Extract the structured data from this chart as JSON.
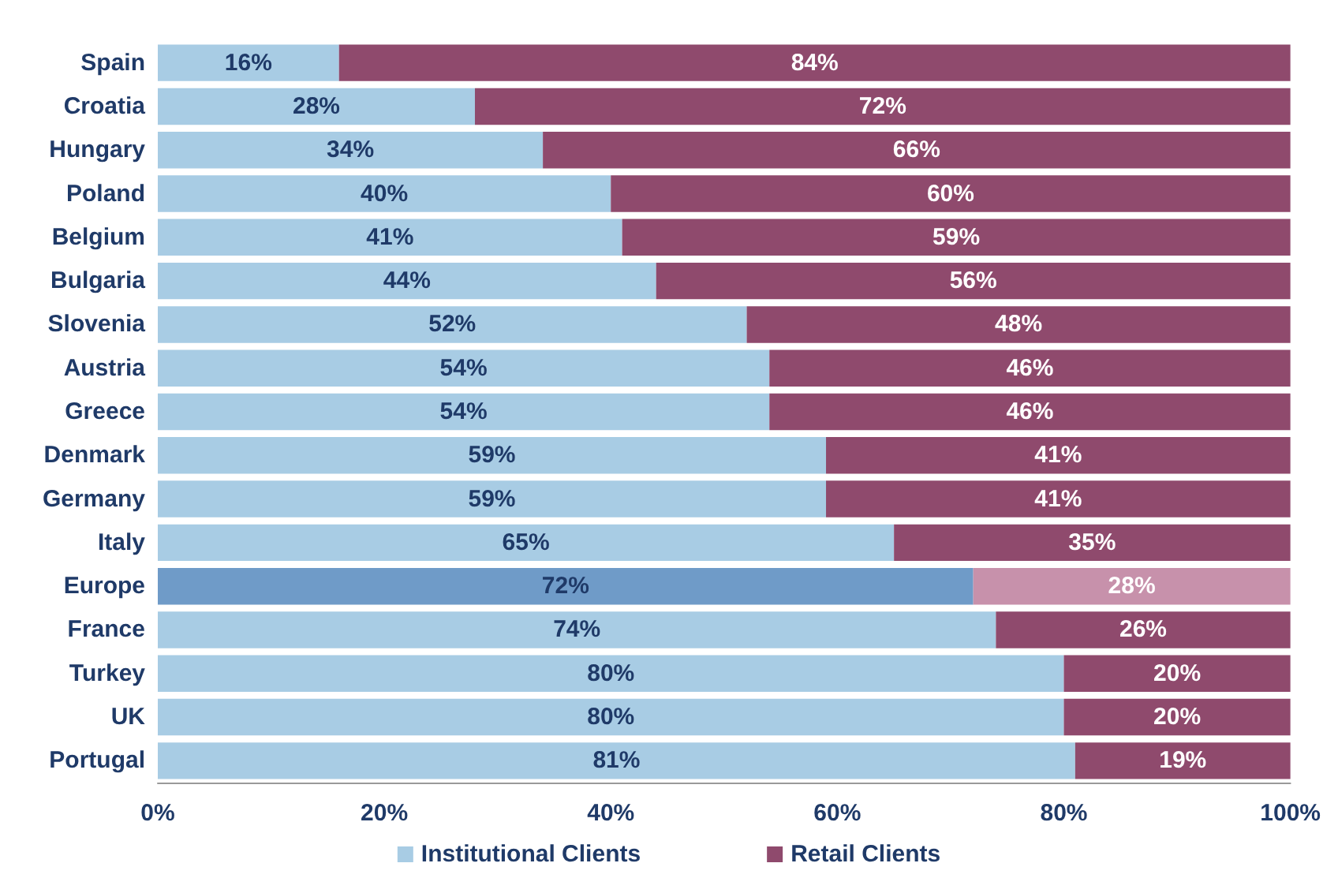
{
  "chart_data": {
    "type": "bar",
    "orientation": "horizontal",
    "stacked": true,
    "categories": [
      "Spain",
      "Croatia",
      "Hungary",
      "Poland",
      "Belgium",
      "Bulgaria",
      "Slovenia",
      "Austria",
      "Greece",
      "Denmark",
      "Germany",
      "Italy",
      "Europe",
      "France",
      "Turkey",
      "UK",
      "Portugal"
    ],
    "series": [
      {
        "name": "Institutional Clients",
        "color": "#a8cce4",
        "colors": [
          "#a8cce4",
          "#a8cce4",
          "#a8cce4",
          "#a8cce4",
          "#a8cce4",
          "#a8cce4",
          "#a8cce4",
          "#a8cce4",
          "#a8cce4",
          "#a8cce4",
          "#a8cce4",
          "#a8cce4",
          "#6f9bc8",
          "#a8cce4",
          "#a8cce4",
          "#a8cce4",
          "#a8cce4"
        ],
        "values": [
          16,
          28,
          34,
          40,
          41,
          44,
          52,
          54,
          54,
          59,
          59,
          65,
          72,
          74,
          80,
          80,
          81
        ],
        "value_labels": [
          "16%",
          "28%",
          "34%",
          "40%",
          "41%",
          "44%",
          "52%",
          "54%",
          "54%",
          "59%",
          "59%",
          "65%",
          "72%",
          "74%",
          "80%",
          "80%",
          "81%"
        ]
      },
      {
        "name": "Retail Clients",
        "color": "#8f4a6d",
        "colors": [
          "#8f4a6d",
          "#8f4a6d",
          "#8f4a6d",
          "#8f4a6d",
          "#8f4a6d",
          "#8f4a6d",
          "#8f4a6d",
          "#8f4a6d",
          "#8f4a6d",
          "#8f4a6d",
          "#8f4a6d",
          "#8f4a6d",
          "#c791ab",
          "#8f4a6d",
          "#8f4a6d",
          "#8f4a6d",
          "#8f4a6d"
        ],
        "values": [
          84,
          72,
          66,
          60,
          59,
          56,
          48,
          46,
          46,
          41,
          41,
          35,
          28,
          26,
          20,
          20,
          19
        ],
        "value_labels": [
          "84%",
          "72%",
          "66%",
          "60%",
          "59%",
          "56%",
          "48%",
          "46%",
          "46%",
          "41%",
          "41%",
          "35%",
          "28%",
          "26%",
          "20%",
          "20%",
          "19%"
        ]
      }
    ],
    "xlim": [
      0,
      100
    ],
    "xticks": [
      {
        "value": 0,
        "label": "0%"
      },
      {
        "value": 20,
        "label": "20%"
      },
      {
        "value": 40,
        "label": "40%"
      },
      {
        "value": 60,
        "label": "60%"
      },
      {
        "value": 80,
        "label": "80%"
      },
      {
        "value": 100,
        "label": "100%"
      }
    ],
    "grid": false,
    "legend": "bottom"
  }
}
